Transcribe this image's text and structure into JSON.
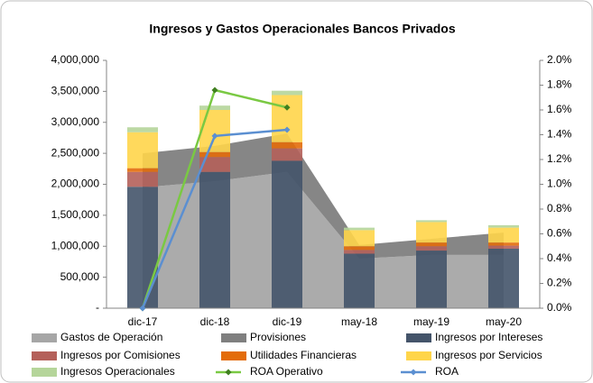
{
  "chart_data": {
    "type": "combo",
    "title": "Ingresos y Gastos Operacionales Bancos Privados",
    "categories": [
      "dic-17",
      "dic-18",
      "dic-19",
      "may-18",
      "may-19",
      "may-20"
    ],
    "ylim": [
      0,
      4000000
    ],
    "yticks": [
      {
        "value": 0,
        "label": "-"
      },
      {
        "value": 500000,
        "label": "500,000"
      },
      {
        "value": 1000000,
        "label": "1,000,000"
      },
      {
        "value": 1500000,
        "label": "1,500,000"
      },
      {
        "value": 2000000,
        "label": "2,000,000"
      },
      {
        "value": 2500000,
        "label": "2,500,000"
      },
      {
        "value": 3000000,
        "label": "3,000,000"
      },
      {
        "value": 3500000,
        "label": "3,500,000"
      },
      {
        "value": 4000000,
        "label": "4,000,000"
      }
    ],
    "y2lim": [
      0,
      2
    ],
    "y2ticks": [
      {
        "value": 0,
        "label": "0.0%"
      },
      {
        "value": 0.2,
        "label": "0.2%"
      },
      {
        "value": 0.4,
        "label": "0.4%"
      },
      {
        "value": 0.6,
        "label": "0.6%"
      },
      {
        "value": 0.8,
        "label": "0.8%"
      },
      {
        "value": 1.0,
        "label": "1.0%"
      },
      {
        "value": 1.2,
        "label": "1.2%"
      },
      {
        "value": 1.4,
        "label": "1.4%"
      },
      {
        "value": 1.6,
        "label": "1.6%"
      },
      {
        "value": 1.8,
        "label": "1.8%"
      },
      {
        "value": 2.0,
        "label": "2.0%"
      }
    ],
    "series": [
      {
        "name": "Gastos de Operación",
        "type": "area",
        "color": "#a6a6a6",
        "values": [
          1950000,
          2050000,
          2200000,
          800000,
          860000,
          860000
        ]
      },
      {
        "name": "Provisiones",
        "type": "area",
        "color": "#7f7f7f",
        "values": [
          550000,
          570000,
          620000,
          220000,
          260000,
          360000
        ]
      },
      {
        "name": "Ingresos por Intereses",
        "type": "bar",
        "color": "#44546a",
        "values": [
          1960000,
          2200000,
          2380000,
          880000,
          930000,
          960000
        ]
      },
      {
        "name": "Ingresos por Comisiones",
        "type": "bar",
        "color": "#b4605a",
        "values": [
          240000,
          240000,
          200000,
          60000,
          70000,
          50000
        ]
      },
      {
        "name": "Utilidades Financieras",
        "type": "bar",
        "color": "#e36c0a",
        "values": [
          60000,
          80000,
          100000,
          60000,
          60000,
          50000
        ]
      },
      {
        "name": "Ingresos por Servicios",
        "type": "bar",
        "color": "#ffd54a",
        "values": [
          580000,
          680000,
          760000,
          260000,
          330000,
          240000
        ]
      },
      {
        "name": "Ingresos Operacionales",
        "type": "bar",
        "color": "#b5d59a",
        "values": [
          80000,
          70000,
          70000,
          40000,
          30000,
          40000
        ]
      },
      {
        "name": "ROA Operativo",
        "type": "line",
        "axis": "y2",
        "color": "#7ac943",
        "marker": "diamond",
        "values": [
          0.0,
          1.76,
          1.62,
          null,
          null,
          null
        ]
      },
      {
        "name": "ROA",
        "type": "line",
        "axis": "y2",
        "color": "#5b8fd1",
        "marker": "diamond",
        "values": [
          0.0,
          1.39,
          1.44,
          null,
          null,
          null
        ]
      }
    ]
  }
}
